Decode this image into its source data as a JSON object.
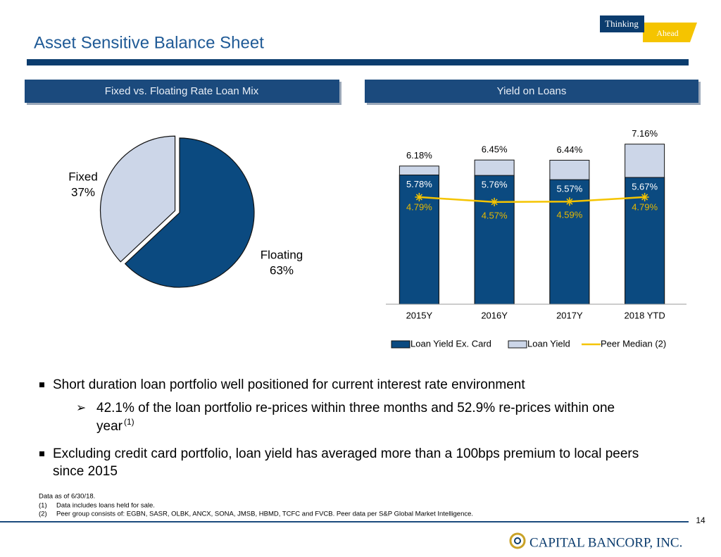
{
  "header": {
    "title": "Asset Sensitive Balance Sheet",
    "logo_top": "Thinking",
    "logo_bottom": "Ahead"
  },
  "panels": [
    {
      "title": "Fixed vs. Floating Rate Loan Mix"
    },
    {
      "title": "Yield on Loans"
    }
  ],
  "chart_data": [
    {
      "type": "pie",
      "categories": [
        "Fixed",
        "Floating"
      ],
      "values": [
        37,
        63
      ],
      "value_labels": [
        "37%",
        "63%"
      ],
      "colors": [
        "#ccd6e8",
        "#0b4a80"
      ]
    },
    {
      "type": "bar",
      "categories": [
        "2015Y",
        "2016Y",
        "2017Y",
        "2018 YTD"
      ],
      "ylim": [
        0,
        8
      ],
      "series": [
        {
          "name": "Loan Yield",
          "color": "#ccd6e8",
          "values": [
            6.18,
            6.45,
            6.44,
            7.16
          ],
          "value_labels": [
            "6.18%",
            "6.45%",
            "6.44%",
            "7.16%"
          ]
        },
        {
          "name": "Loan Yield Ex. Card",
          "color": "#0b4a80",
          "values": [
            5.78,
            5.76,
            5.57,
            5.67
          ],
          "value_labels": [
            "5.78%",
            "5.76%",
            "5.57%",
            "5.67%"
          ]
        },
        {
          "name": "Peer Median (2)",
          "type": "line",
          "color": "#f5c400",
          "values": [
            4.79,
            4.57,
            4.59,
            4.79
          ],
          "value_labels": [
            "4.79%",
            "4.57%",
            "4.59%",
            "4.79%"
          ]
        }
      ]
    }
  ],
  "bullets": [
    {
      "text": "Short duration loan portfolio well positioned for current interest rate environment",
      "sub": {
        "line1": "42.1% of the loan portfolio re-prices within three months and 52.9% re-prices within one",
        "line2": "year",
        "sup": "(1)"
      }
    },
    {
      "line1": "Excluding credit card portfolio, loan yield has averaged more than a 100bps premium to local peers",
      "line2": "since 2015"
    }
  ],
  "footnotes": {
    "date": "Data as of 6/30/18.",
    "notes": [
      {
        "mark": "(1)",
        "text": "Data includes loans held for sale."
      },
      {
        "mark": "(2)",
        "text": "Peer group consists of: EGBN, SASR, OLBK, ANCX, SONA, JMSB, HBMD, TCFC and FVCB. Peer data per S&P Global Market Intelligence."
      }
    ]
  },
  "page_number": "14",
  "company": "CAPITAL BANCORP, INC."
}
